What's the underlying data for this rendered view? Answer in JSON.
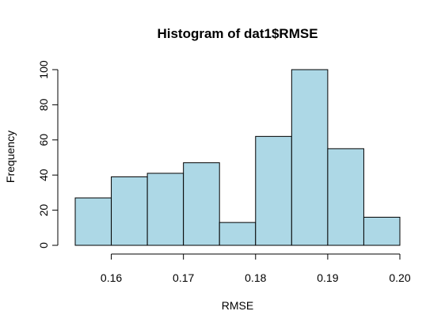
{
  "chart_data": {
    "type": "bar",
    "title": "Histogram of dat1$RMSE",
    "xlabel": "RMSE",
    "ylabel": "Frequency",
    "bins": [
      {
        "start": 0.155,
        "end": 0.16,
        "count": 27
      },
      {
        "start": 0.16,
        "end": 0.165,
        "count": 39
      },
      {
        "start": 0.165,
        "end": 0.17,
        "count": 41
      },
      {
        "start": 0.17,
        "end": 0.175,
        "count": 47
      },
      {
        "start": 0.175,
        "end": 0.18,
        "count": 13
      },
      {
        "start": 0.18,
        "end": 0.185,
        "count": 62
      },
      {
        "start": 0.185,
        "end": 0.19,
        "count": 100
      },
      {
        "start": 0.19,
        "end": 0.195,
        "count": 55
      },
      {
        "start": 0.195,
        "end": 0.2,
        "count": 16
      }
    ],
    "x_ticks": [
      0.16,
      0.17,
      0.18,
      0.19,
      0.2
    ],
    "x_tick_labels": [
      "0.16",
      "0.17",
      "0.18",
      "0.19",
      "0.20"
    ],
    "y_ticks": [
      0,
      20,
      40,
      60,
      80,
      100
    ],
    "y_tick_labels": [
      "0",
      "20",
      "40",
      "60",
      "80",
      "100"
    ],
    "xlim": [
      0.155,
      0.2
    ],
    "ylim": [
      0,
      100
    ],
    "bar_color": "#add8e6",
    "grid": false
  }
}
